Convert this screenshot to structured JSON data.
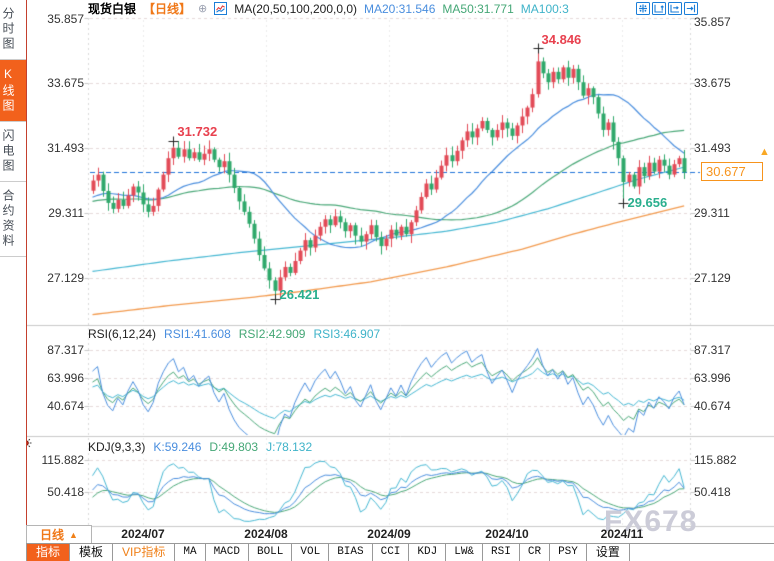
{
  "header": {
    "symbol": "现货白银",
    "period": "【日线】",
    "ma_settings": "MA(20,50,100,200,0,0)",
    "ma20": "MA20:31.546",
    "ma50": "MA50:31.771",
    "ma100": "MA100:3"
  },
  "icons": {
    "plus": "⊕",
    "price_arrow": "▲",
    "period_arrow": "▲"
  },
  "sidebar": {
    "items": [
      {
        "label": "分时图",
        "active": false
      },
      {
        "label": "K线图",
        "active": true
      },
      {
        "label": "闪电图",
        "active": false
      },
      {
        "label": "合约资料",
        "active": false
      }
    ]
  },
  "main_chart": {
    "y_axis": [
      "35.857",
      "33.675",
      "31.493",
      "29.311",
      "27.129"
    ],
    "current_price": "30.677",
    "annotations": [
      {
        "text": "31.732",
        "kind": "high"
      },
      {
        "text": "34.846",
        "kind": "high"
      },
      {
        "text": "26.421",
        "kind": "low"
      },
      {
        "text": "29.656",
        "kind": "low"
      }
    ]
  },
  "rsi_panel": {
    "title": "RSI(6,12,24)",
    "rsi1": "RSI1:41.608",
    "rsi2": "RSI2:42.909",
    "rsi3": "RSI3:46.907",
    "y_axis": [
      "87.317",
      "63.996",
      "40.674"
    ]
  },
  "kdj_panel": {
    "title": "KDJ(9,3,3)",
    "k": "K:59.246",
    "d": "D:49.803",
    "j": "J:78.132",
    "y_axis": [
      "115.882",
      "50.418"
    ]
  },
  "x_axis": {
    "period_label": "日线",
    "months": [
      "2024/07",
      "2024/08",
      "2024/09",
      "2024/10",
      "2024/11"
    ]
  },
  "bottom_tabs": {
    "items": [
      {
        "label": "指标"
      },
      {
        "label": "模板"
      },
      {
        "label": "VIP指标"
      },
      {
        "label": "MA"
      },
      {
        "label": "MACD"
      },
      {
        "label": "BOLL"
      },
      {
        "label": "VOL"
      },
      {
        "label": "BIAS"
      },
      {
        "label": "CCI"
      },
      {
        "label": "KDJ"
      },
      {
        "label": "LW&"
      },
      {
        "label": "RSI"
      },
      {
        "label": "CR"
      },
      {
        "label": "PSY"
      },
      {
        "label": "设置"
      }
    ]
  },
  "watermark": "FX678",
  "colors": {
    "up": "#e24b57",
    "down": "#2fa86b",
    "ma20": "#4a8ede",
    "ma50": "#4aa878",
    "ma100": "#45b7d2",
    "ma200": "#f29a4e",
    "current_line": "#1e72d8",
    "grid": "#e6dada",
    "vgrid": "#ececec",
    "edge": "#d8d8d8",
    "separator": "#c8c8c8",
    "cross": "#222222"
  },
  "chart_data": {
    "type": "candlestick",
    "symbol": "现货白银",
    "period": "日线",
    "price_axis": [
      35.857,
      33.675,
      31.493,
      29.311,
      27.129
    ],
    "months": [
      "2024/07",
      "2024/08",
      "2024/09",
      "2024/10",
      "2024/11"
    ],
    "current_price": 30.677,
    "closes": [
      30.4,
      30.6,
      30.05,
      29.65,
      29.45,
      29.75,
      29.55,
      29.9,
      30.2,
      30.0,
      29.6,
      29.35,
      29.55,
      30.1,
      30.6,
      31.15,
      31.5,
      31.2,
      31.45,
      31.15,
      31.35,
      31.1,
      31.3,
      31.45,
      31.1,
      30.85,
      31.05,
      30.6,
      30.15,
      29.7,
      29.35,
      28.95,
      28.45,
      27.9,
      27.45,
      27.05,
      26.7,
      27.15,
      27.5,
      27.3,
      27.7,
      28.05,
      28.4,
      28.15,
      28.55,
      28.85,
      29.1,
      28.9,
      29.2,
      29.0,
      28.7,
      28.9,
      28.55,
      28.35,
      28.6,
      28.9,
      28.5,
      28.2,
      28.45,
      28.75,
      28.55,
      28.85,
      28.6,
      29.0,
      29.4,
      29.85,
      30.3,
      30.1,
      30.5,
      30.9,
      31.25,
      31.05,
      31.4,
      31.75,
      32.05,
      31.85,
      32.15,
      32.4,
      32.1,
      31.85,
      32.1,
      32.35,
      32.15,
      31.9,
      32.25,
      32.55,
      32.85,
      33.3,
      34.4,
      34.0,
      33.7,
      34.05,
      33.8,
      34.2,
      33.85,
      34.15,
      33.7,
      33.25,
      33.5,
      33.2,
      32.65,
      32.1,
      32.35,
      31.7,
      31.15,
      30.35,
      30.6,
      30.2,
      30.85,
      30.55,
      31.0,
      30.7,
      31.1,
      30.9,
      30.6,
      30.95,
      31.15,
      30.677
    ],
    "extremes": {
      "high": {
        "16": 31.732,
        "88": 34.846
      },
      "low": {
        "36": 26.421,
        "105": 29.656
      }
    },
    "ma100_keypoints": [
      [
        0,
        27.35
      ],
      [
        15,
        27.7
      ],
      [
        30,
        28.0
      ],
      [
        45,
        28.25
      ],
      [
        60,
        28.5
      ],
      [
        70,
        28.7
      ],
      [
        80,
        29.0
      ],
      [
        90,
        29.45
      ],
      [
        100,
        30.0
      ],
      [
        108,
        30.45
      ],
      [
        117,
        30.85
      ]
    ],
    "ma200_keypoints": [
      [
        0,
        25.9
      ],
      [
        15,
        26.2
      ],
      [
        30,
        26.45
      ],
      [
        40,
        26.65
      ],
      [
        55,
        27.0
      ],
      [
        70,
        27.5
      ],
      [
        85,
        28.1
      ],
      [
        95,
        28.6
      ],
      [
        105,
        29.05
      ],
      [
        117,
        29.55
      ]
    ],
    "rsi_periods": [
      6,
      12,
      24
    ],
    "kdj_params": [
      9,
      3,
      3
    ],
    "rsi_axis": [
      87.317,
      63.996,
      40.674
    ],
    "kdj_axis": [
      115.882,
      50.418
    ]
  }
}
